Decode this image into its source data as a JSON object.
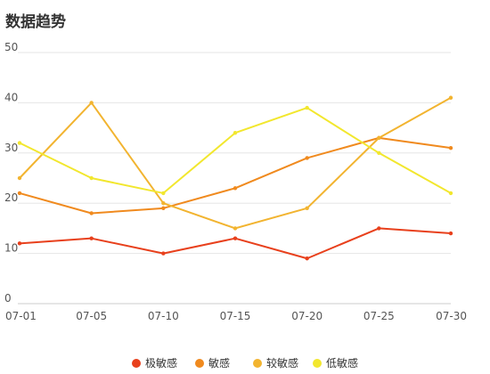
{
  "header": {
    "title": "数据趋势"
  },
  "chart_data": {
    "type": "line",
    "title": "数据趋势",
    "xlabel": "",
    "ylabel": "",
    "categories": [
      "07-01",
      "07-05",
      "07-10",
      "07-15",
      "07-20",
      "07-25",
      "07-30"
    ],
    "ylim": [
      0,
      50
    ],
    "yticks": [
      0,
      10,
      20,
      30,
      40,
      50
    ],
    "grid": true,
    "legend_position": "bottom",
    "series": [
      {
        "name": "极敏感",
        "color": "#e8401c",
        "values": [
          12,
          13,
          10,
          13,
          9,
          15,
          14
        ]
      },
      {
        "name": "敏感",
        "color": "#f08a1e",
        "values": [
          22,
          18,
          19,
          23,
          29,
          33,
          31
        ]
      },
      {
        "name": "较敏感",
        "color": "#f2b430",
        "values": [
          25,
          40,
          20,
          15,
          19,
          33,
          41
        ]
      },
      {
        "name": "低敏感",
        "color": "#f2e72e",
        "values": [
          32,
          25,
          22,
          34,
          39,
          30,
          22
        ]
      }
    ]
  }
}
